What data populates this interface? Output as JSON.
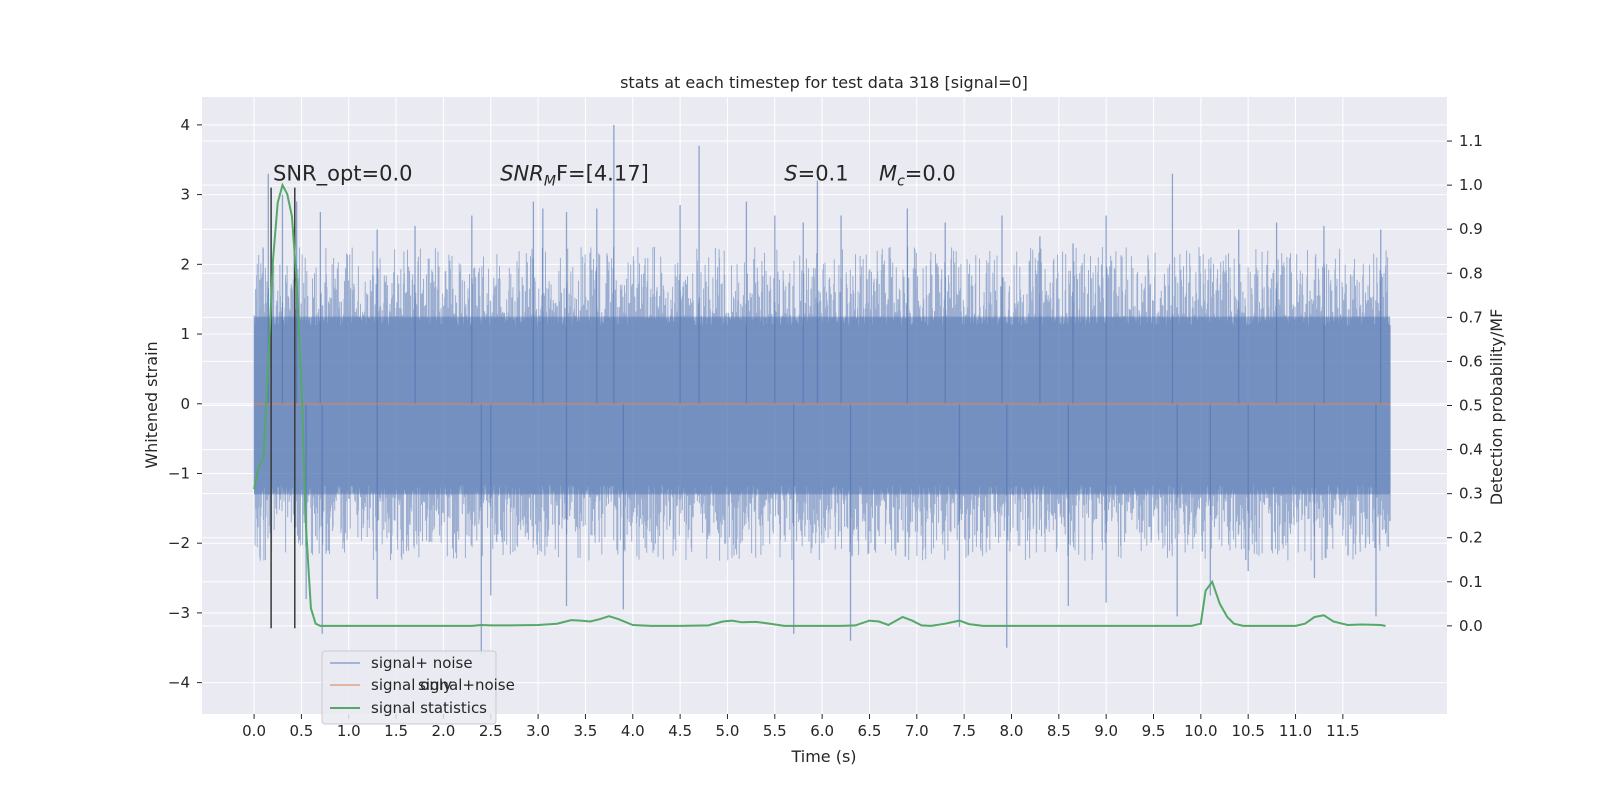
{
  "chart_data": {
    "type": "line",
    "title": "stats at each timestep for test data 318 [signal=0]",
    "xlabel": "Time (s)",
    "ylabel": "Whitened strain",
    "ylabel_right": "Detection probability/MF",
    "xlim": [
      -0.55,
      12.6
    ],
    "ylim": [
      -4.45,
      4.4
    ],
    "ylim_right": [
      -0.2,
      1.2
    ],
    "x_ticks": [
      "0.0",
      "0.5",
      "1.0",
      "1.5",
      "2.0",
      "2.5",
      "3.0",
      "3.5",
      "4.0",
      "4.5",
      "5.0",
      "5.5",
      "6.0",
      "6.5",
      "7.0",
      "7.5",
      "8.0",
      "8.5",
      "9.0",
      "9.5",
      "10.0",
      "10.5",
      "11.0",
      "11.5"
    ],
    "y_ticks": [
      "4",
      "3",
      "2",
      "1",
      "0",
      "−1",
      "−2",
      "−3",
      "−4"
    ],
    "y_ticks_right": [
      "1.1",
      "1.0",
      "0.9",
      "0.8",
      "0.7",
      "0.6",
      "0.5",
      "0.4",
      "0.3",
      "0.2",
      "0.1",
      "0.0"
    ],
    "grid": true,
    "legend_position": "lower-left",
    "legend": [
      "signal+ noise",
      "signal only",
      "signal statistics"
    ],
    "legend_hidden_text": "signal+noise",
    "annotations": [
      {
        "name": "snr-opt",
        "text": "SNR_opt=0.0",
        "x": 0.2,
        "y": 3.2
      },
      {
        "name": "snr-mf",
        "label": "SNR",
        "sub": "M",
        "rest": "F=[4.17]",
        "x": 2.6,
        "y": 3.2
      },
      {
        "name": "s-value",
        "label": "S",
        "rest": "=0.1",
        "x": 5.6,
        "y": 3.2
      },
      {
        "name": "mc-value",
        "label": "M",
        "sub": "c",
        "rest": "=0.0",
        "x": 6.6,
        "y": 3.2
      }
    ],
    "vlines": [
      0.18,
      0.43
    ],
    "vline_range": [
      -3.22,
      3.1
    ],
    "series": [
      {
        "name": "signal+ noise",
        "axis": "left",
        "duration": 12.0,
        "envelope_upper": 1.8,
        "envelope_lower": -1.8,
        "band_upper": 1.25,
        "band_lower": -1.3,
        "spikes": [
          [
            0.15,
            3.3
          ],
          [
            0.3,
            3.0
          ],
          [
            0.45,
            2.9
          ],
          [
            0.7,
            2.75
          ],
          [
            1.3,
            2.5
          ],
          [
            1.7,
            2.55
          ],
          [
            2.3,
            2.7
          ],
          [
            2.95,
            2.9
          ],
          [
            3.05,
            2.8
          ],
          [
            3.3,
            2.75
          ],
          [
            3.8,
            4.0
          ],
          [
            3.62,
            2.8
          ],
          [
            4.7,
            3.7
          ],
          [
            4.5,
            2.85
          ],
          [
            5.2,
            2.9
          ],
          [
            5.5,
            2.7
          ],
          [
            5.8,
            2.6
          ],
          [
            5.95,
            3.2
          ],
          [
            6.2,
            2.7
          ],
          [
            6.9,
            2.8
          ],
          [
            7.3,
            2.6
          ],
          [
            7.9,
            2.7
          ],
          [
            8.3,
            2.4
          ],
          [
            8.65,
            2.3
          ],
          [
            9.0,
            2.7
          ],
          [
            9.7,
            3.3
          ],
          [
            10.4,
            2.5
          ],
          [
            10.8,
            2.6
          ],
          [
            11.3,
            2.55
          ],
          [
            11.9,
            2.5
          ],
          [
            0.55,
            -2.8
          ],
          [
            0.72,
            -3.3
          ],
          [
            1.3,
            -2.8
          ],
          [
            2.4,
            -3.6
          ],
          [
            2.5,
            -2.75
          ],
          [
            3.3,
            -2.9
          ],
          [
            3.9,
            -2.95
          ],
          [
            5.7,
            -3.3
          ],
          [
            6.3,
            -3.4
          ],
          [
            7.45,
            -3.2
          ],
          [
            7.95,
            -3.5
          ],
          [
            8.6,
            -2.9
          ],
          [
            9.0,
            -2.85
          ],
          [
            9.75,
            -3.05
          ],
          [
            10.1,
            -2.75
          ],
          [
            10.5,
            -2.4
          ],
          [
            11.2,
            -2.5
          ],
          [
            11.85,
            -3.05
          ]
        ]
      },
      {
        "name": "signal only",
        "axis": "left",
        "x": [
          0.0,
          12.0
        ],
        "y": [
          0.0,
          0.0
        ]
      },
      {
        "name": "signal statistics",
        "axis": "right",
        "x": [
          0.0,
          0.05,
          0.1,
          0.15,
          0.2,
          0.25,
          0.3,
          0.35,
          0.4,
          0.45,
          0.5,
          0.55,
          0.6,
          0.65,
          0.7,
          0.8,
          1.0,
          1.5,
          2.0,
          2.3,
          2.4,
          2.5,
          2.7,
          3.0,
          3.2,
          3.35,
          3.45,
          3.55,
          3.65,
          3.75,
          3.85,
          4.0,
          4.2,
          4.5,
          4.8,
          4.95,
          5.05,
          5.15,
          5.3,
          5.45,
          5.6,
          5.8,
          6.0,
          6.2,
          6.35,
          6.5,
          6.6,
          6.7,
          6.85,
          6.95,
          7.05,
          7.15,
          7.3,
          7.45,
          7.55,
          7.7,
          8.0,
          8.5,
          9.0,
          9.5,
          9.9,
          10.0,
          10.05,
          10.12,
          10.2,
          10.28,
          10.35,
          10.45,
          10.6,
          11.0,
          11.1,
          11.2,
          11.3,
          11.4,
          11.55,
          11.7,
          11.9,
          11.95
        ],
        "y": [
          0.31,
          0.36,
          0.38,
          0.6,
          0.83,
          0.96,
          1.0,
          0.98,
          0.93,
          0.78,
          0.55,
          0.22,
          0.04,
          0.005,
          0.0,
          0.0,
          0.0,
          0.0,
          0.0,
          0.0,
          0.002,
          0.001,
          0.001,
          0.002,
          0.005,
          0.013,
          0.012,
          0.01,
          0.015,
          0.022,
          0.015,
          0.002,
          0.0,
          0.0,
          0.001,
          0.01,
          0.012,
          0.008,
          0.009,
          0.005,
          0.0,
          0.0,
          0.0,
          0.0,
          0.001,
          0.012,
          0.01,
          0.002,
          0.02,
          0.012,
          0.001,
          0.0,
          0.005,
          0.012,
          0.004,
          0.0,
          0.0,
          0.0,
          0.0,
          0.0,
          0.0,
          0.005,
          0.08,
          0.1,
          0.05,
          0.02,
          0.005,
          0.0,
          0.0,
          0.0,
          0.005,
          0.02,
          0.024,
          0.01,
          0.002,
          0.003,
          0.002,
          0.0
        ]
      }
    ],
    "colors": {
      "noise": "#4c72b0",
      "signal_only": "#dd8452",
      "statistics": "#55a868",
      "vline": "#3a3a3a",
      "plot_bg": "#eaeaf2",
      "grid": "#ffffff"
    }
  }
}
